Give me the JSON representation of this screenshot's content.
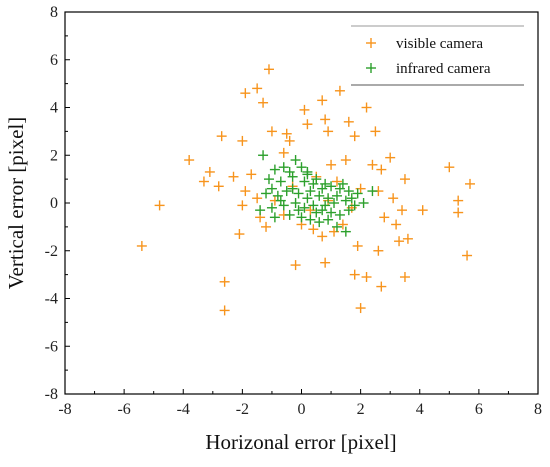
{
  "chart_data": {
    "type": "scatter",
    "xlabel": "Horizonal error [pixel]",
    "ylabel": "Vertical error [pixel]",
    "xlim": [
      -8,
      8
    ],
    "ylim": [
      -8,
      8
    ],
    "xticks": [
      -8,
      -6,
      -4,
      -2,
      0,
      2,
      4,
      6,
      8
    ],
    "yticks": [
      -8,
      -6,
      -4,
      -2,
      0,
      2,
      4,
      6,
      8
    ],
    "grid": false,
    "legend_position": "top-right",
    "marker": "plus",
    "series": [
      {
        "name": "visible camera",
        "color": "#f7941d",
        "points": [
          [
            -1.1,
            5.6
          ],
          [
            -1.5,
            4.8
          ],
          [
            -1.9,
            4.6
          ],
          [
            -1.3,
            4.2
          ],
          [
            0.1,
            3.9
          ],
          [
            0.7,
            4.3
          ],
          [
            1.3,
            4.7
          ],
          [
            2.2,
            4.0
          ],
          [
            -2.7,
            2.8
          ],
          [
            -2.0,
            2.6
          ],
          [
            -1.0,
            3.0
          ],
          [
            -0.5,
            2.9
          ],
          [
            -0.4,
            2.6
          ],
          [
            -0.6,
            2.1
          ],
          [
            0.2,
            3.3
          ],
          [
            0.8,
            3.5
          ],
          [
            0.9,
            3.0
          ],
          [
            1.6,
            3.4
          ],
          [
            1.8,
            2.8
          ],
          [
            2.5,
            3.0
          ],
          [
            2.4,
            1.6
          ],
          [
            1.5,
            1.8
          ],
          [
            1.0,
            1.6
          ],
          [
            3.0,
            1.9
          ],
          [
            2.7,
            1.4
          ],
          [
            3.5,
            1.0
          ],
          [
            -3.8,
            1.8
          ],
          [
            -3.1,
            1.3
          ],
          [
            -3.3,
            0.9
          ],
          [
            -2.8,
            0.7
          ],
          [
            -2.3,
            1.1
          ],
          [
            -1.7,
            1.2
          ],
          [
            -1.9,
            0.5
          ],
          [
            -1.5,
            0.2
          ],
          [
            -2.0,
            -0.1
          ],
          [
            -4.8,
            -0.1
          ],
          [
            -5.4,
            -1.8
          ],
          [
            -2.1,
            -1.3
          ],
          [
            -1.2,
            -1.0
          ],
          [
            -0.6,
            -0.5
          ],
          [
            0.0,
            -0.9
          ],
          [
            0.4,
            -1.1
          ],
          [
            0.7,
            -1.4
          ],
          [
            1.1,
            -1.2
          ],
          [
            1.4,
            -0.9
          ],
          [
            1.9,
            -1.8
          ],
          [
            2.8,
            -0.6
          ],
          [
            3.2,
            -0.9
          ],
          [
            3.3,
            -1.6
          ],
          [
            3.6,
            -1.5
          ],
          [
            3.4,
            -0.3
          ],
          [
            4.1,
            -0.3
          ],
          [
            2.6,
            -2.0
          ],
          [
            1.8,
            -3.0
          ],
          [
            2.2,
            -3.1
          ],
          [
            3.5,
            -3.1
          ],
          [
            2.7,
            -3.5
          ],
          [
            -0.2,
            -2.6
          ],
          [
            0.8,
            -2.5
          ],
          [
            -2.6,
            -3.3
          ],
          [
            -2.6,
            -4.5
          ],
          [
            2.0,
            -4.4
          ],
          [
            5.0,
            1.5
          ],
          [
            5.3,
            0.1
          ],
          [
            5.3,
            -0.4
          ],
          [
            5.7,
            0.8
          ],
          [
            5.6,
            -2.2
          ],
          [
            -0.3,
            0.7
          ],
          [
            0.5,
            1.1
          ],
          [
            1.2,
            0.9
          ],
          [
            2.0,
            0.6
          ],
          [
            -0.9,
            0.1
          ],
          [
            0.3,
            -0.3
          ],
          [
            2.6,
            0.5
          ],
          [
            3.1,
            0.2
          ],
          [
            1.7,
            -0.2
          ],
          [
            -1.4,
            -0.6
          ],
          [
            0.9,
            0.1
          ]
        ]
      },
      {
        "name": "infrared camera",
        "color": "#2ca02c",
        "points": [
          [
            -1.3,
            2.0
          ],
          [
            -0.2,
            1.8
          ],
          [
            -0.6,
            1.5
          ],
          [
            0.2,
            1.3
          ],
          [
            -0.9,
            1.4
          ],
          [
            -1.1,
            1.0
          ],
          [
            -0.7,
            0.9
          ],
          [
            -0.3,
            1.1
          ],
          [
            0.1,
            0.9
          ],
          [
            0.5,
            1.0
          ],
          [
            0.8,
            0.8
          ],
          [
            1.0,
            0.7
          ],
          [
            1.3,
            0.6
          ],
          [
            1.6,
            0.5
          ],
          [
            1.9,
            0.4
          ],
          [
            2.4,
            0.5
          ],
          [
            -1.2,
            0.4
          ],
          [
            -0.8,
            0.3
          ],
          [
            -0.5,
            0.5
          ],
          [
            -0.1,
            0.4
          ],
          [
            0.3,
            0.5
          ],
          [
            0.6,
            0.3
          ],
          [
            0.9,
            0.2
          ],
          [
            1.2,
            0.3
          ],
          [
            1.5,
            0.1
          ],
          [
            1.8,
            -0.1
          ],
          [
            2.1,
            0.0
          ],
          [
            -1.4,
            -0.3
          ],
          [
            -1.0,
            -0.2
          ],
          [
            -0.6,
            -0.1
          ],
          [
            -0.2,
            0.0
          ],
          [
            0.1,
            -0.2
          ],
          [
            0.4,
            -0.1
          ],
          [
            0.7,
            -0.3
          ],
          [
            1.0,
            -0.4
          ],
          [
            1.3,
            -0.5
          ],
          [
            1.6,
            -0.3
          ],
          [
            -0.9,
            -0.6
          ],
          [
            -0.4,
            -0.5
          ],
          [
            0.0,
            -0.6
          ],
          [
            0.3,
            -0.7
          ],
          [
            0.6,
            -0.8
          ],
          [
            0.9,
            -0.7
          ],
          [
            1.2,
            -1.0
          ],
          [
            1.5,
            -1.2
          ],
          [
            0.2,
            0.2
          ],
          [
            -0.3,
            0.6
          ],
          [
            0.7,
            0.6
          ],
          [
            1.1,
            0.0
          ],
          [
            -0.7,
            0.1
          ],
          [
            0.4,
            0.8
          ],
          [
            0.0,
            1.5
          ],
          [
            -0.4,
            1.3
          ],
          [
            0.8,
            -0.1
          ],
          [
            1.4,
            0.8
          ],
          [
            -1.0,
            0.6
          ],
          [
            0.5,
            -0.4
          ],
          [
            -0.1,
            -0.3
          ],
          [
            1.7,
            0.2
          ],
          [
            0.2,
            1.2
          ]
        ]
      }
    ]
  }
}
